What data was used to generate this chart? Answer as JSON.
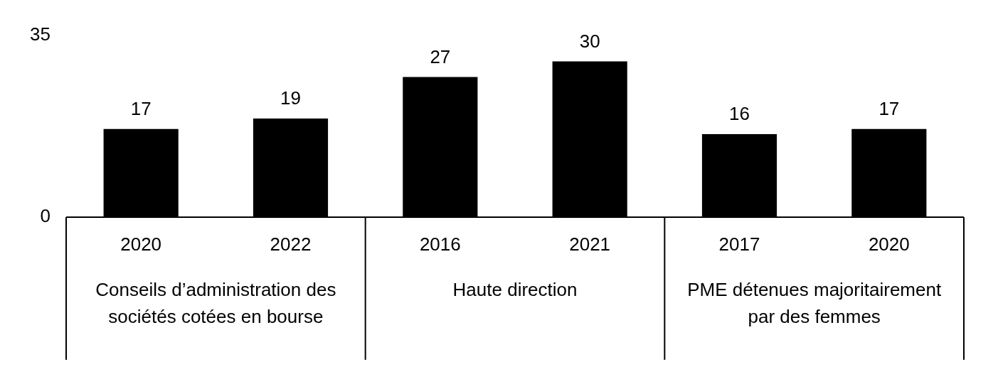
{
  "chart_data": {
    "type": "bar",
    "categories": [
      "2020",
      "2022",
      "2016",
      "2021",
      "2017",
      "2020"
    ],
    "series": [
      {
        "color": "#000000",
        "values": [
          17,
          19,
          27,
          30,
          16,
          17
        ]
      }
    ],
    "ylim": [
      0,
      35
    ],
    "yticks": [
      0,
      35
    ],
    "grid": false,
    "legend": false,
    "data_labels": true,
    "annotations": [
      "Conseils d’administration des sociétés cotées en bourse",
      "Haute direction",
      "PME détenues majoritairement par des femmes"
    ]
  }
}
